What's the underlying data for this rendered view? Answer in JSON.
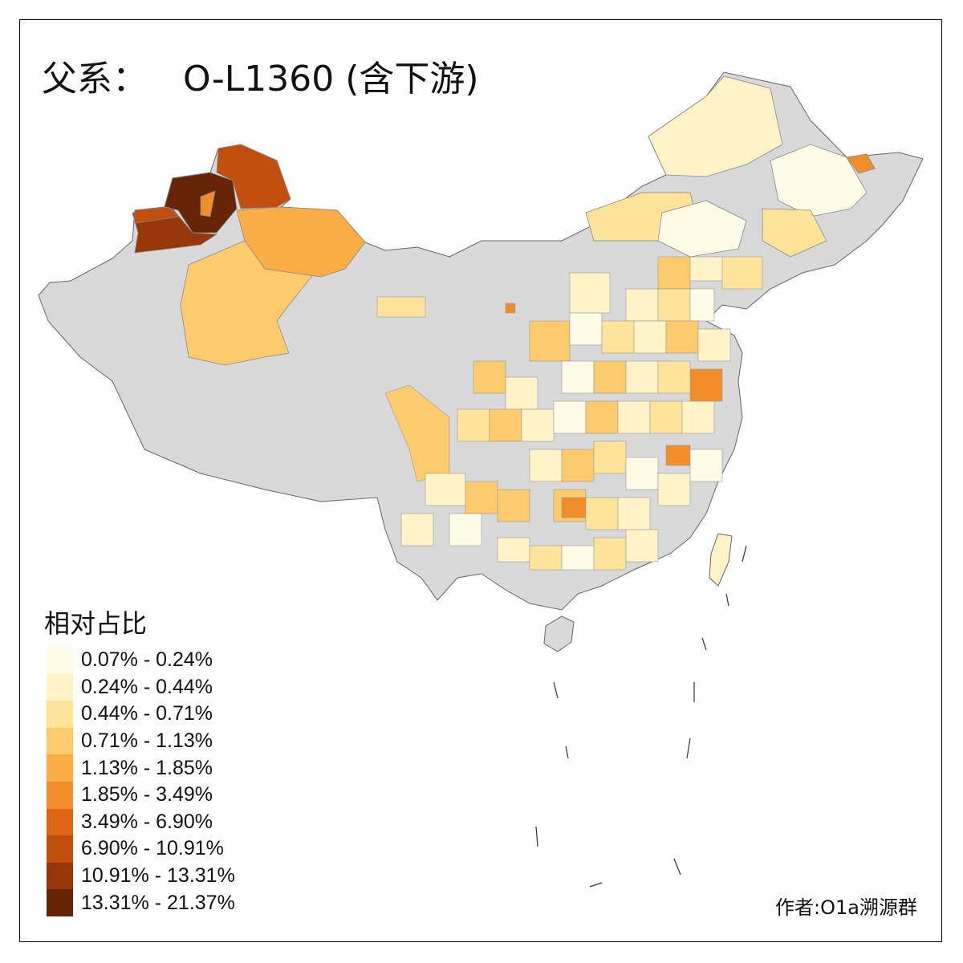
{
  "title": {
    "prefix": "父系：",
    "haplogroup": "O-L1360 (含下游)"
  },
  "legend": {
    "title": "相对占比",
    "classes": [
      {
        "label": "0.07% - 0.24%",
        "color": "#FFFBE5"
      },
      {
        "label": "0.24% - 0.44%",
        "color": "#FFF3C7"
      },
      {
        "label": "0.44% - 0.71%",
        "color": "#FEE39A"
      },
      {
        "label": "0.71% - 1.13%",
        "color": "#FDCB6C"
      },
      {
        "label": "1.13% - 1.85%",
        "color": "#FBAE45"
      },
      {
        "label": "1.85% - 3.49%",
        "color": "#F28D2B"
      },
      {
        "label": "3.49% - 6.90%",
        "color": "#DF6818"
      },
      {
        "label": "6.90% - 10.91%",
        "color": "#C24E0D"
      },
      {
        "label": "10.91% - 13.31%",
        "color": "#973608"
      },
      {
        "label": "13.31% - 21.37%",
        "color": "#662506"
      }
    ],
    "no_data_color": "#D9D9D9"
  },
  "credit": "作者:O1a溯源群"
}
